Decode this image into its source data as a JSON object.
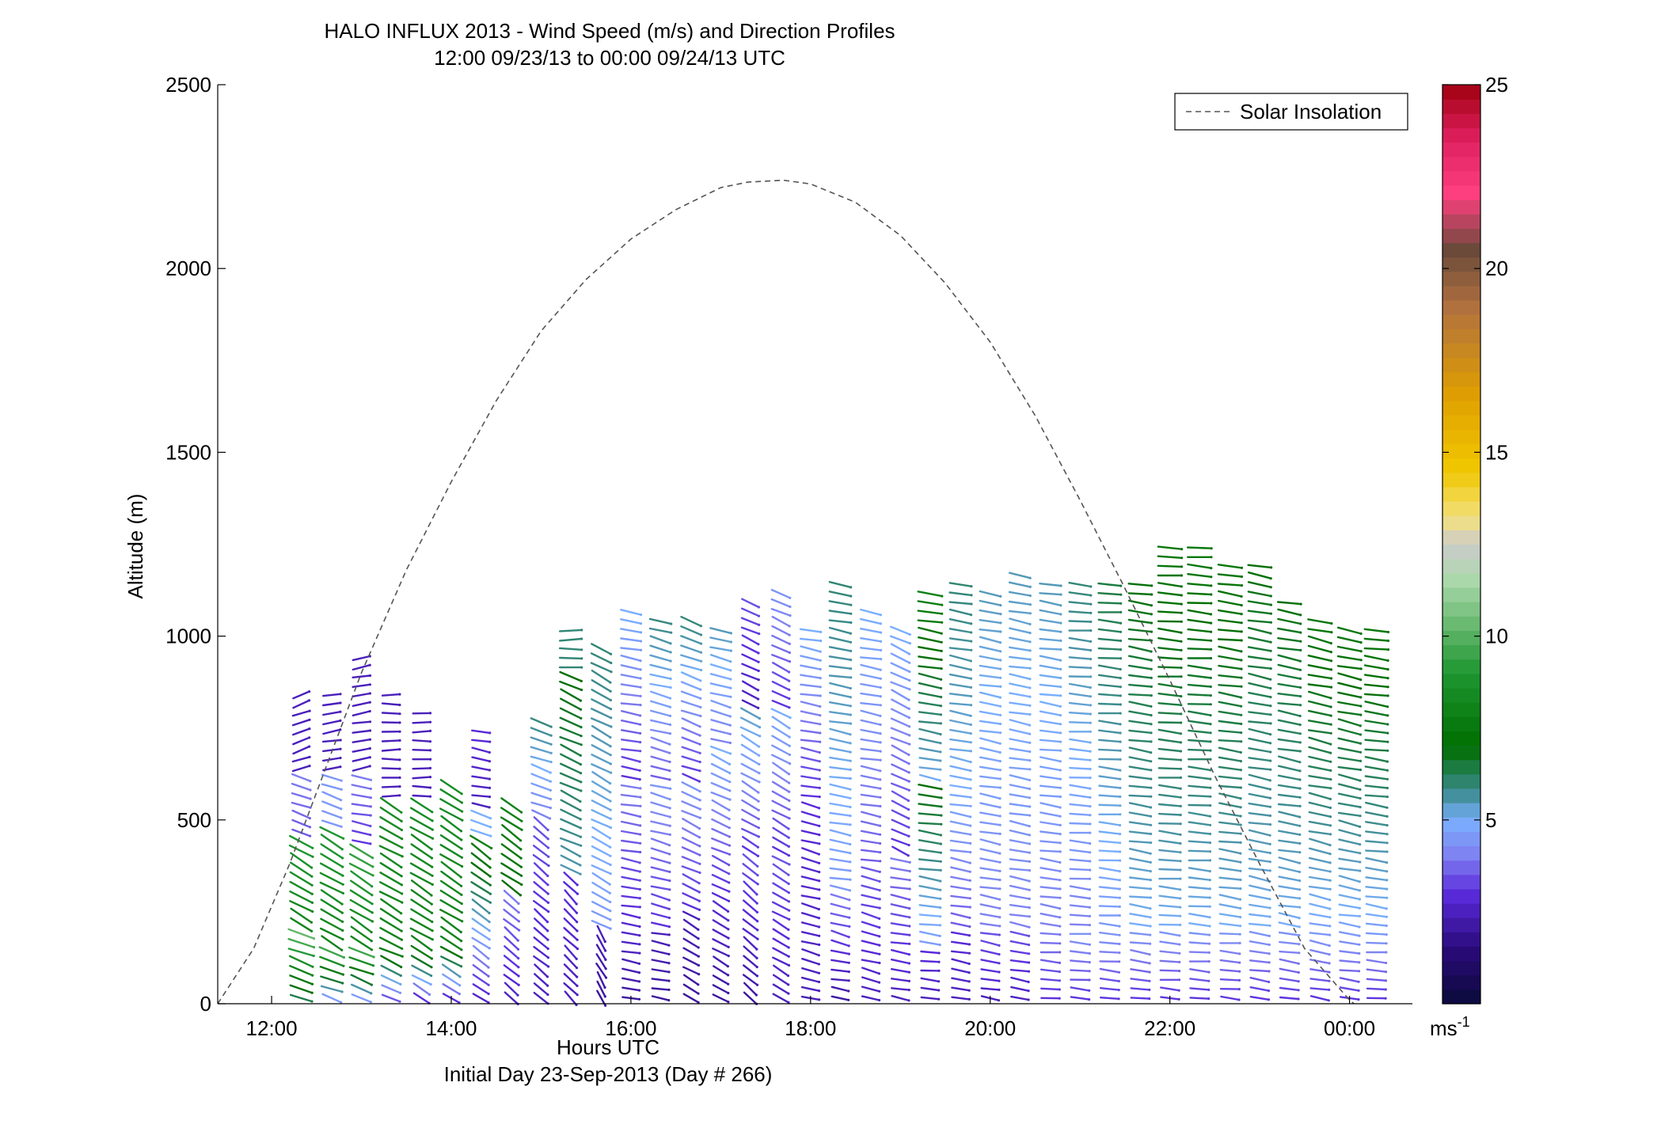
{
  "chart_data": {
    "type": "wind-profile",
    "title": "HALO INFLUX 2013 - Wind Speed (m/s) and Direction Profiles",
    "subtitle": "12:00 09/23/13 to 00:00 09/24/13  UTC",
    "xlabel": "Hours UTC",
    "footnote": "Initial Day 23-Sep-2013 (Day # 266)",
    "ylabel": "Altitude (m)",
    "xlim_hours": [
      11.4,
      24.7
    ],
    "ylim": [
      0,
      2500
    ],
    "x_ticks": [
      {
        "hour": 12,
        "label": "12:00"
      },
      {
        "hour": 14,
        "label": "14:00"
      },
      {
        "hour": 16,
        "label": "16:00"
      },
      {
        "hour": 18,
        "label": "18:00"
      },
      {
        "hour": 20,
        "label": "20:00"
      },
      {
        "hour": 22,
        "label": "22:00"
      },
      {
        "hour": 24,
        "label": "00:00"
      }
    ],
    "y_ticks": [
      {
        "value": 0,
        "label": "0"
      },
      {
        "value": 500,
        "label": "500"
      },
      {
        "value": 1000,
        "label": "1000"
      },
      {
        "value": 1500,
        "label": "1500"
      },
      {
        "value": 2000,
        "label": "2000"
      },
      {
        "value": 2500,
        "label": "2500"
      }
    ],
    "legend": {
      "label": "Solar Insolation",
      "position": "top-right",
      "line_style": "dashed",
      "color": "#555555"
    },
    "solar_insolation": {
      "hours": [
        11.4,
        11.8,
        12.2,
        12.6,
        13.0,
        13.5,
        14.0,
        14.5,
        15.0,
        15.5,
        16.0,
        16.5,
        17.0,
        17.3,
        17.7,
        18.0,
        18.5,
        19.0,
        19.5,
        20.0,
        20.5,
        21.0,
        21.5,
        22.0,
        22.5,
        23.0,
        23.5,
        24.0,
        24.05
      ],
      "altitude": [
        0,
        150,
        380,
        640,
        900,
        1180,
        1420,
        1640,
        1830,
        1970,
        2080,
        2160,
        2220,
        2235,
        2240,
        2230,
        2180,
        2090,
        1960,
        1800,
        1600,
        1370,
        1130,
        880,
        620,
        380,
        150,
        10,
        0
      ]
    },
    "colorbar": {
      "label": "ms",
      "label_superscript": "-1",
      "range": [
        0,
        25
      ],
      "ticks": [
        {
          "value": 5,
          "label": "5"
        },
        {
          "value": 10,
          "label": "10"
        },
        {
          "value": 15,
          "label": "15"
        },
        {
          "value": 20,
          "label": "20"
        },
        {
          "value": 25,
          "label": "25"
        }
      ],
      "stops": [
        {
          "value": 0,
          "color": "#0a0a3a"
        },
        {
          "value": 1.5,
          "color": "#2a0a7a"
        },
        {
          "value": 3,
          "color": "#5a2adc"
        },
        {
          "value": 4,
          "color": "#7f7ff0"
        },
        {
          "value": 5,
          "color": "#7ab0ff"
        },
        {
          "value": 5.8,
          "color": "#3a8a8a"
        },
        {
          "value": 7,
          "color": "#006e00"
        },
        {
          "value": 9,
          "color": "#1e9630"
        },
        {
          "value": 11.5,
          "color": "#aad8aa"
        },
        {
          "value": 12.5,
          "color": "#cccccc"
        },
        {
          "value": 13.2,
          "color": "#f2e080"
        },
        {
          "value": 14.5,
          "color": "#f0c800"
        },
        {
          "value": 16.5,
          "color": "#e0a000"
        },
        {
          "value": 19,
          "color": "#b07040"
        },
        {
          "value": 20.5,
          "color": "#6a4a3a"
        },
        {
          "value": 22,
          "color": "#ff4080"
        },
        {
          "value": 23.5,
          "color": "#e02060"
        },
        {
          "value": 25,
          "color": "#a00010"
        }
      ]
    },
    "wind_profiles": [
      {
        "hour": 12.33,
        "top": 850,
        "bands": [
          [
            0,
            200,
            6,
            10.5,
            20
          ],
          [
            200,
            450,
            8,
            9,
            30
          ],
          [
            450,
            620,
            3.5,
            4,
            20
          ],
          [
            620,
            900,
            2.5,
            2.5,
            -20
          ]
        ]
      },
      {
        "hour": 12.67,
        "top": 850,
        "bands": [
          [
            0,
            150,
            4,
            10,
            20
          ],
          [
            150,
            470,
            8,
            9,
            30
          ],
          [
            470,
            620,
            4.5,
            4.5,
            20
          ],
          [
            620,
            900,
            2.5,
            2.5,
            -10
          ]
        ]
      },
      {
        "hour": 13.0,
        "top": 940,
        "bands": [
          [
            0,
            150,
            4,
            10,
            22
          ],
          [
            150,
            420,
            8,
            9.5,
            32
          ],
          [
            420,
            620,
            3,
            4,
            10
          ],
          [
            620,
            950,
            2.5,
            2.5,
            -10
          ]
        ]
      },
      {
        "hour": 13.33,
        "top": 840,
        "bands": [
          [
            0,
            150,
            3,
            8,
            25
          ],
          [
            150,
            560,
            8,
            8.5,
            30
          ],
          [
            560,
            850,
            2.5,
            2.5,
            0
          ]
        ]
      },
      {
        "hour": 13.67,
        "top": 800,
        "bands": [
          [
            0,
            150,
            2.5,
            8,
            30
          ],
          [
            150,
            560,
            8,
            8.5,
            32
          ],
          [
            560,
            810,
            2.5,
            2.5,
            0
          ]
        ]
      },
      {
        "hour": 14.0,
        "top": 600,
        "bands": [
          [
            0,
            150,
            2.5,
            7.5,
            30
          ],
          [
            150,
            600,
            8,
            8.5,
            33
          ]
        ]
      },
      {
        "hour": 14.33,
        "top": 760,
        "bands": [
          [
            0,
            450,
            2.5,
            8,
            35
          ],
          [
            450,
            520,
            5,
            5,
            20
          ],
          [
            520,
            780,
            2.5,
            3,
            10
          ]
        ]
      },
      {
        "hour": 14.67,
        "top": 540,
        "bands": [
          [
            0,
            300,
            2.5,
            4,
            40
          ],
          [
            300,
            540,
            7,
            8,
            35
          ]
        ]
      },
      {
        "hour": 15.0,
        "top": 780,
        "bands": [
          [
            0,
            500,
            2.5,
            3.5,
            40
          ],
          [
            500,
            780,
            4,
            6,
            20
          ]
        ]
      },
      {
        "hour": 15.33,
        "top": 1020,
        "bands": [
          [
            0,
            350,
            2.5,
            3,
            45
          ],
          [
            350,
            900,
            5.5,
            7,
            25
          ],
          [
            900,
            1020,
            6,
            6,
            0
          ]
        ]
      },
      {
        "hour": 15.67,
        "top": 970,
        "bands": [
          [
            0,
            200,
            2,
            2.5,
            60
          ],
          [
            200,
            970,
            4.5,
            6,
            28
          ]
        ]
      },
      {
        "hour": 16.0,
        "top": 1070,
        "bands": [
          [
            0,
            250,
            2,
            3,
            10
          ],
          [
            250,
            600,
            3,
            4,
            10
          ],
          [
            600,
            1070,
            3,
            5,
            10
          ]
        ]
      },
      {
        "hour": 16.33,
        "top": 1060,
        "bands": [
          [
            0,
            200,
            2,
            2.5,
            10
          ],
          [
            200,
            600,
            3,
            4.5,
            15
          ],
          [
            600,
            1060,
            3.5,
            6,
            15
          ]
        ]
      },
      {
        "hour": 16.67,
        "top": 1050,
        "bands": [
          [
            0,
            250,
            2,
            2.5,
            30
          ],
          [
            250,
            600,
            3,
            4.5,
            25
          ],
          [
            600,
            1050,
            3,
            6,
            20
          ]
        ]
      },
      {
        "hour": 17.0,
        "top": 1020,
        "bands": [
          [
            0,
            300,
            2,
            3,
            30
          ],
          [
            300,
            700,
            3,
            5,
            25
          ],
          [
            700,
            1020,
            4,
            5.5,
            15
          ]
        ]
      },
      {
        "hour": 17.33,
        "top": 1110,
        "bands": [
          [
            0,
            400,
            2,
            3.5,
            40
          ],
          [
            400,
            800,
            3,
            5.5,
            30
          ],
          [
            800,
            1110,
            2.5,
            3.5,
            25
          ]
        ]
      },
      {
        "hour": 17.67,
        "top": 1130,
        "bands": [
          [
            0,
            400,
            2.5,
            3.5,
            30
          ],
          [
            400,
            800,
            3,
            5,
            30
          ],
          [
            800,
            1130,
            3,
            4.5,
            25
          ]
        ]
      },
      {
        "hour": 18.0,
        "top": 1020,
        "bands": [
          [
            0,
            550,
            2.5,
            3,
            15
          ],
          [
            550,
            1020,
            3,
            5,
            10
          ]
        ]
      },
      {
        "hour": 18.33,
        "top": 1140,
        "bands": [
          [
            0,
            150,
            2,
            3,
            10
          ],
          [
            150,
            300,
            3,
            4,
            15
          ],
          [
            300,
            1140,
            4.5,
            6,
            10
          ]
        ]
      },
      {
        "hour": 18.67,
        "top": 1080,
        "bands": [
          [
            0,
            350,
            2.5,
            3.5,
            15
          ],
          [
            350,
            1080,
            3.5,
            5,
            10
          ]
        ]
      },
      {
        "hour": 19.0,
        "top": 1020,
        "bands": [
          [
            0,
            400,
            2.5,
            4,
            10
          ],
          [
            400,
            1020,
            3,
            5,
            25
          ]
        ]
      },
      {
        "hour": 19.33,
        "top": 1130,
        "bands": [
          [
            0,
            150,
            2.5,
            3,
            5
          ],
          [
            150,
            600,
            4.5,
            7,
            8
          ],
          [
            600,
            1130,
            5,
            8,
            10
          ]
        ]
      },
      {
        "hour": 19.67,
        "top": 1140,
        "bands": [
          [
            0,
            200,
            2.5,
            3,
            10
          ],
          [
            200,
            600,
            3.5,
            5,
            10
          ],
          [
            600,
            1140,
            5,
            6,
            10
          ]
        ]
      },
      {
        "hour": 20.0,
        "top": 1130,
        "bands": [
          [
            0,
            200,
            2.5,
            3.5,
            10
          ],
          [
            200,
            1130,
            4,
            5.5,
            10
          ]
        ]
      },
      {
        "hour": 20.33,
        "top": 1170,
        "bands": [
          [
            0,
            200,
            2.5,
            3.5,
            10
          ],
          [
            200,
            1170,
            4,
            5.5,
            10
          ]
        ]
      },
      {
        "hour": 20.67,
        "top": 1140,
        "bands": [
          [
            0,
            200,
            3,
            4,
            5
          ],
          [
            200,
            1140,
            4,
            5.5,
            8
          ]
        ]
      },
      {
        "hour": 21.0,
        "top": 1150,
        "bands": [
          [
            0,
            200,
            3,
            4.5,
            5
          ],
          [
            200,
            1150,
            4,
            6,
            5
          ]
        ]
      },
      {
        "hour": 21.33,
        "top": 1150,
        "bands": [
          [
            0,
            200,
            3,
            4.5,
            5
          ],
          [
            200,
            1150,
            4.5,
            6.5,
            5
          ]
        ]
      },
      {
        "hour": 21.67,
        "top": 1160,
        "bands": [
          [
            0,
            200,
            3,
            4.5,
            8
          ],
          [
            200,
            1160,
            5,
            7,
            8
          ]
        ]
      },
      {
        "hour": 22.0,
        "top": 1250,
        "bands": [
          [
            0,
            200,
            3,
            4.5,
            5
          ],
          [
            200,
            1250,
            5,
            7.5,
            5
          ]
        ]
      },
      {
        "hour": 22.33,
        "top": 1250,
        "bands": [
          [
            0,
            200,
            3,
            4.5,
            5
          ],
          [
            200,
            1250,
            5,
            7.5,
            5
          ]
        ]
      },
      {
        "hour": 22.67,
        "top": 1210,
        "bands": [
          [
            0,
            200,
            3,
            4.5,
            5
          ],
          [
            200,
            1210,
            5,
            7.5,
            8
          ]
        ]
      },
      {
        "hour": 23.0,
        "top": 1200,
        "bands": [
          [
            0,
            200,
            3,
            4.5,
            8
          ],
          [
            200,
            1200,
            5,
            7,
            10
          ]
        ]
      },
      {
        "hour": 23.33,
        "top": 1110,
        "bands": [
          [
            0,
            200,
            3,
            4.5,
            8
          ],
          [
            200,
            1110,
            5,
            7,
            10
          ]
        ]
      },
      {
        "hour": 23.67,
        "top": 1060,
        "bands": [
          [
            0,
            250,
            3,
            5,
            10
          ],
          [
            250,
            1060,
            5,
            7.5,
            12
          ]
        ]
      },
      {
        "hour": 24.0,
        "top": 1020,
        "bands": [
          [
            0,
            250,
            3,
            5,
            8
          ],
          [
            250,
            1020,
            5,
            7.5,
            12
          ]
        ]
      },
      {
        "hour": 24.3,
        "top": 1020,
        "bands": [
          [
            0,
            250,
            3,
            5,
            5
          ],
          [
            250,
            1020,
            5,
            7.5,
            8
          ]
        ]
      }
    ]
  }
}
